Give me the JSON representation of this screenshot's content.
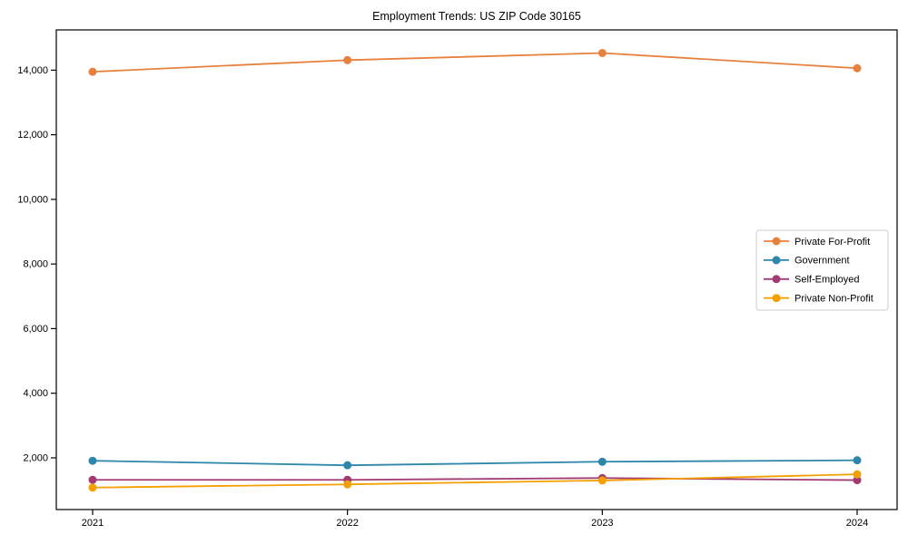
{
  "page": {
    "background_color": "#ffffff"
  },
  "chart_data": {
    "type": "line",
    "title": "Employment Trends: US ZIP Code 30165",
    "xlabel": "",
    "ylabel": "",
    "categories": [
      "2021",
      "2022",
      "2023",
      "2024"
    ],
    "series": [
      {
        "name": "Private For-Profit",
        "color": "#E8803E",
        "values": [
          13950,
          14310,
          14530,
          14060
        ]
      },
      {
        "name": "Government",
        "color": "#2E86AB",
        "values": [
          1910,
          1770,
          1880,
          1925
        ]
      },
      {
        "name": "Self-Employed",
        "color": "#A23B72",
        "values": [
          1320,
          1320,
          1375,
          1310
        ]
      },
      {
        "name": "Private Non-Profit",
        "color": "#F5A002",
        "values": [
          1080,
          1180,
          1300,
          1490
        ]
      }
    ],
    "yticks": [
      2000,
      4000,
      6000,
      8000,
      10000,
      12000,
      14000
    ],
    "ytick_labels": [
      "2,000",
      "4,000",
      "6,000",
      "8,000",
      "10,000",
      "12,000",
      "14,000"
    ],
    "ylim": [
      400,
      15245
    ],
    "grid": false,
    "legend_position": "right-center",
    "marker": "circle",
    "axis_color": "#000000",
    "text_color": "#000000",
    "legend_border_color": "#cccccc",
    "legend_background": "#ffffff"
  }
}
